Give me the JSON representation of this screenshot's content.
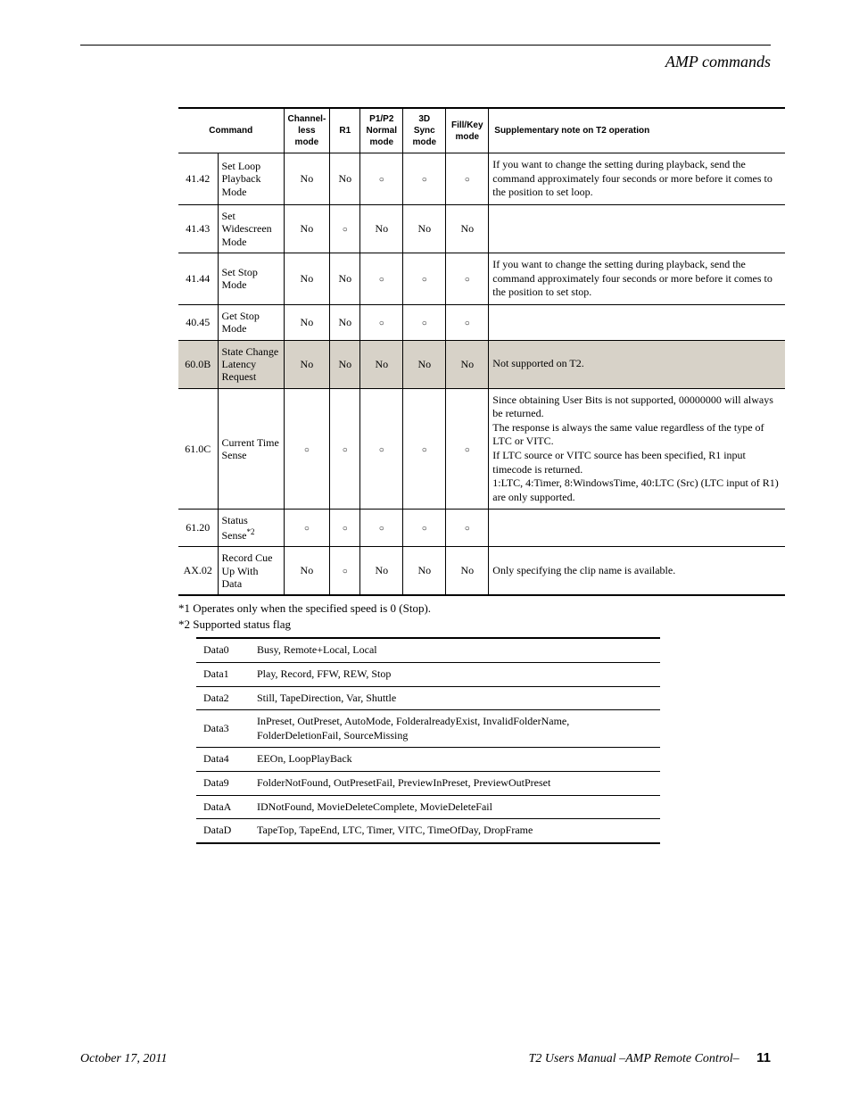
{
  "page_title": "AMP commands",
  "command_table": {
    "headers": [
      "Command",
      "Channel-less mode",
      "R1",
      "P1/P2 Normal mode",
      "3D Sync mode",
      "Fill/Key mode",
      "Supplementary note on T2 operation"
    ],
    "rows": [
      {
        "code": "41.42",
        "name": "Set Loop Playback Mode",
        "chless": "No",
        "r1": "No",
        "p1p2": "○",
        "sync3d": "○",
        "fillkey": "○",
        "note": "If you want to change the setting during playback, send the command approximately four seconds or more before it comes to the position to set loop.",
        "shaded": false
      },
      {
        "code": "41.43",
        "name": "Set Widescreen Mode",
        "chless": "No",
        "r1": "○",
        "p1p2": "No",
        "sync3d": "No",
        "fillkey": "No",
        "note": "",
        "shaded": false
      },
      {
        "code": "41.44",
        "name": "Set Stop Mode",
        "chless": "No",
        "r1": "No",
        "p1p2": "○",
        "sync3d": "○",
        "fillkey": "○",
        "note": "If you want to change the setting during playback, send the command approximately four seconds or more before it comes to the position to set stop.",
        "shaded": false
      },
      {
        "code": "40.45",
        "name": "Get Stop Mode",
        "chless": "No",
        "r1": "No",
        "p1p2": "○",
        "sync3d": "○",
        "fillkey": "○",
        "note": "",
        "shaded": false
      },
      {
        "code": "60.0B",
        "name": "State Change Latency Request",
        "chless": "No",
        "r1": "No",
        "p1p2": "No",
        "sync3d": "No",
        "fillkey": "No",
        "note": "Not supported on T2.",
        "shaded": true
      },
      {
        "code": "61.0C",
        "name": "Current Time Sense",
        "chless": "○",
        "r1": "○",
        "p1p2": "○",
        "sync3d": "○",
        "fillkey": "○",
        "note": "Since obtaining User Bits is not supported, 00000000 will always be returned.\nThe response is always the same value regardless of the type of LTC or VITC.\nIf LTC source or VITC source has been specified, R1 input timecode is returned.\n1:LTC, 4:Timer, 8:WindowsTime, 40:LTC (Src) (LTC input of R1) are only supported.",
        "shaded": false
      },
      {
        "code": "61.20",
        "name": "Status Sense",
        "name_sup": "*2",
        "chless": "○",
        "r1": "○",
        "p1p2": "○",
        "sync3d": "○",
        "fillkey": "○",
        "note": "",
        "shaded": false
      },
      {
        "code": "AX.02",
        "name": "Record Cue Up With Data",
        "chless": "No",
        "r1": "○",
        "p1p2": "No",
        "sync3d": "No",
        "fillkey": "No",
        "note": "Only specifying the clip name is available.",
        "shaded": false
      }
    ]
  },
  "footnotes": [
    "*1  Operates only when the specified speed is 0 (Stop).",
    "*2  Supported status flag"
  ],
  "flag_table": [
    {
      "k": "Data0",
      "v": "Busy, Remote+Local, Local"
    },
    {
      "k": "Data1",
      "v": "Play, Record, FFW, REW, Stop"
    },
    {
      "k": "Data2",
      "v": "Still, TapeDirection, Var, Shuttle"
    },
    {
      "k": "Data3",
      "v": "InPreset, OutPreset, AutoMode, FolderalreadyExist, InvalidFolderName, FolderDeletionFail, SourceMissing"
    },
    {
      "k": "Data4",
      "v": "EEOn, LoopPlayBack"
    },
    {
      "k": "Data9",
      "v": "FolderNotFound, OutPresetFail, PreviewInPreset, PreviewOutPreset"
    },
    {
      "k": "DataA",
      "v": "IDNotFound, MovieDeleteComplete, MovieDeleteFail"
    },
    {
      "k": "DataD",
      "v": "TapeTop, TapeEnd, LTC, Timer, VITC, TimeOfDay, DropFrame"
    }
  ],
  "footer": {
    "date": "October 17, 2011",
    "manual": "T2 Users Manual –AMP Remote Control–",
    "page": "11"
  }
}
